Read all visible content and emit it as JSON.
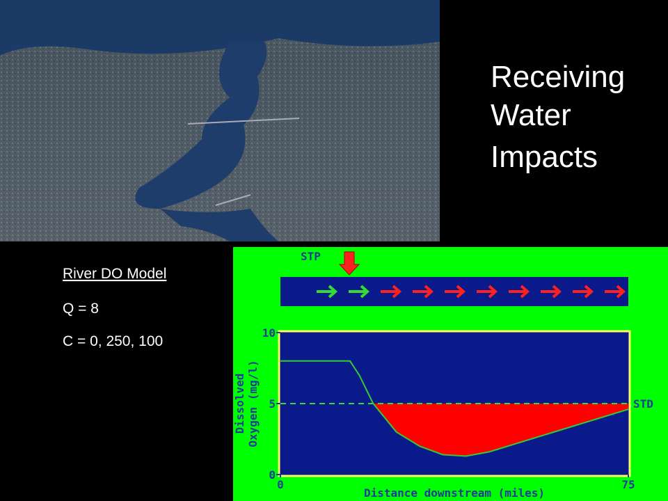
{
  "title": [
    "Receiving",
    "Water",
    "Impacts"
  ],
  "model": {
    "heading": "River DO Model",
    "lines": [
      "Q = 8",
      "C = 0, 250, 100"
    ]
  },
  "chart_data": {
    "type": "line",
    "source_label": "STP",
    "ylabel": [
      "Dissolved",
      "Oxygen (mg/l)"
    ],
    "xlabel": "Distance downstream (miles)",
    "x": [
      0,
      15,
      17,
      20,
      25,
      30,
      35,
      40,
      45,
      50,
      55,
      60,
      65,
      70,
      75
    ],
    "values": [
      8,
      8,
      7,
      5,
      3,
      2,
      1.4,
      1.3,
      1.6,
      2.1,
      2.6,
      3.1,
      3.6,
      4.1,
      4.6
    ],
    "color": "#33cc33",
    "deficit_color": "#ff0000",
    "standard": {
      "value": 5,
      "label": "STD"
    },
    "xlim": [
      0,
      75
    ],
    "xticks": [
      0,
      75
    ],
    "ylim": [
      0,
      10
    ],
    "yticks": [
      0,
      5,
      10
    ]
  }
}
